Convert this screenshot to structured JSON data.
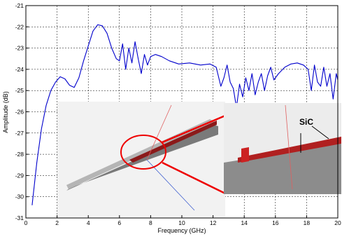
{
  "chart_data": {
    "type": "line",
    "title": "",
    "xlabel": "Frequency (GHz)",
    "ylabel": "Amplitude (dB)",
    "xlim": [
      0,
      20
    ],
    "ylim": [
      -31,
      -21
    ],
    "xticks": [
      "0",
      "2",
      "4",
      "6",
      "8",
      "10",
      "12",
      "14",
      "16",
      "18",
      "20"
    ],
    "yticks": [
      "-21",
      "-22",
      "-23",
      "-24",
      "-25",
      "-26",
      "-27",
      "-28",
      "-29",
      "-30",
      "-31"
    ],
    "grid": true,
    "series": [
      {
        "color": "#0000cc",
        "x": [
          0.4,
          0.7,
          1.0,
          1.3,
          1.6,
          1.9,
          2.2,
          2.5,
          2.8,
          3.1,
          3.4,
          3.7,
          4.0,
          4.3,
          4.6,
          4.9,
          5.2,
          5.5,
          5.8,
          6.0,
          6.2,
          6.4,
          6.6,
          6.8,
          7.0,
          7.2,
          7.4,
          7.6,
          7.8,
          8.0,
          8.3,
          8.7,
          9.2,
          9.8,
          10.5,
          11.2,
          11.8,
          12.2,
          12.5,
          12.7,
          12.9,
          13.1,
          13.3,
          13.5,
          13.7,
          13.9,
          14.1,
          14.3,
          14.5,
          14.7,
          14.9,
          15.1,
          15.3,
          15.5,
          15.7,
          15.9,
          16.2,
          16.6,
          17.0,
          17.4,
          17.8,
          18.1,
          18.3,
          18.5,
          18.7,
          18.9,
          19.1,
          19.3,
          19.5,
          19.7,
          19.9,
          20.0
        ],
        "y": [
          -30.4,
          -28.4,
          -26.8,
          -25.7,
          -25.0,
          -24.6,
          -24.35,
          -24.45,
          -24.75,
          -24.85,
          -24.4,
          -23.6,
          -22.9,
          -22.2,
          -21.9,
          -21.95,
          -22.3,
          -23.0,
          -23.5,
          -23.6,
          -22.8,
          -24.0,
          -23.0,
          -23.7,
          -22.7,
          -23.5,
          -24.2,
          -23.3,
          -23.8,
          -23.4,
          -23.3,
          -23.4,
          -23.6,
          -23.75,
          -23.7,
          -23.8,
          -23.75,
          -23.9,
          -24.8,
          -24.4,
          -23.8,
          -24.6,
          -24.9,
          -25.8,
          -24.7,
          -25.3,
          -24.4,
          -25.0,
          -24.2,
          -25.2,
          -24.6,
          -24.2,
          -25.0,
          -24.3,
          -23.9,
          -24.5,
          -24.2,
          -23.9,
          -23.75,
          -23.7,
          -23.8,
          -24.0,
          -25.0,
          -23.8,
          -24.6,
          -24.8,
          -23.9,
          -24.8,
          -24.2,
          -25.4,
          -24.2,
          -24.5
        ]
      }
    ],
    "annotations": [
      "SiC"
    ]
  }
}
